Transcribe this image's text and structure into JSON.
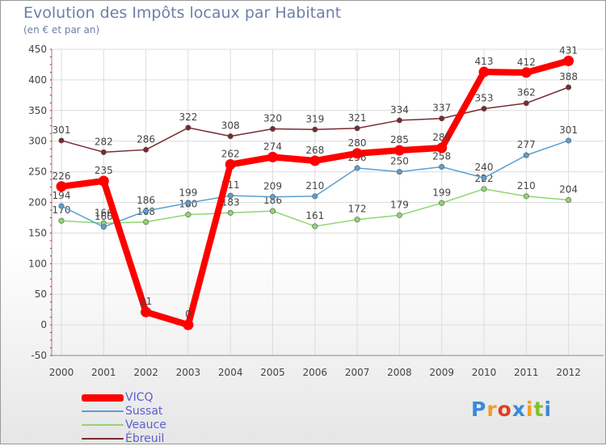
{
  "chart_data": {
    "type": "line",
    "title": "Evolution des Impôts locaux par Habitant",
    "subtitle": "(en € et par an)",
    "categories": [
      "2000",
      "2001",
      "2002",
      "2003",
      "2004",
      "2005",
      "2006",
      "2007",
      "2008",
      "2009",
      "2010",
      "2011",
      "2012"
    ],
    "ylim": [
      -50,
      450
    ],
    "yticks": [
      -50,
      0,
      50,
      100,
      150,
      200,
      250,
      300,
      350,
      400,
      450
    ],
    "grid": true,
    "legend_position": "bottom-left",
    "series": [
      {
        "name": "Ébreuil",
        "color": "#7a2a33",
        "values": [
          301,
          282,
          286,
          322,
          308,
          320,
          319,
          321,
          334,
          337,
          353,
          362,
          388
        ]
      },
      {
        "name": "Veauce",
        "color": "#8ed670",
        "values": [
          170,
          166,
          168,
          180,
          183,
          186,
          161,
          172,
          179,
          199,
          222,
          210,
          204
        ]
      },
      {
        "name": "Sussat",
        "color": "#5a9fd2",
        "values": [
          194,
          160,
          186,
          199,
          211,
          209,
          210,
          256,
          250,
          258,
          240,
          277,
          301
        ]
      },
      {
        "name": "VICQ",
        "color": "#ff0000",
        "values": [
          226,
          235,
          21,
          0,
          262,
          274,
          268,
          280,
          285,
          289,
          413,
          412,
          431
        ]
      }
    ],
    "data_labels": {
      "Ébreuil": [
        "301",
        "282",
        "286",
        "322",
        "308",
        "320",
        "319",
        "321",
        "334",
        "337",
        "353",
        "362",
        "388"
      ],
      "Veauce": [
        "170",
        "166",
        "168",
        "180",
        "183",
        "186",
        "161",
        "172",
        "179",
        "199",
        "222",
        "210",
        "204"
      ],
      "Sussat": [
        "194",
        "160",
        "186",
        "199",
        "211",
        "209",
        "210",
        "256",
        "250",
        "258",
        "240",
        "277",
        "301"
      ],
      "VICQ": [
        "226",
        "235",
        "21",
        "0",
        "262",
        "274",
        "268",
        "280",
        "285",
        "289",
        "413",
        "412",
        "431"
      ]
    }
  },
  "legend": {
    "items": [
      {
        "label": "VICQ",
        "color": "#ff0000"
      },
      {
        "label": "Sussat",
        "color": "#5a9fd2"
      },
      {
        "label": "Veauce",
        "color": "#8ed670"
      },
      {
        "label": "Ébreuil",
        "color": "#7a2a33"
      }
    ]
  },
  "brand": {
    "letters": [
      "P",
      "r",
      "o",
      "x",
      "i",
      "t",
      "i"
    ],
    "colors": [
      "#3a8ad8",
      "#f0a020",
      "#e04020",
      "#3a8ad8",
      "#f0a020",
      "#80c030",
      "#3a8ad8"
    ]
  }
}
